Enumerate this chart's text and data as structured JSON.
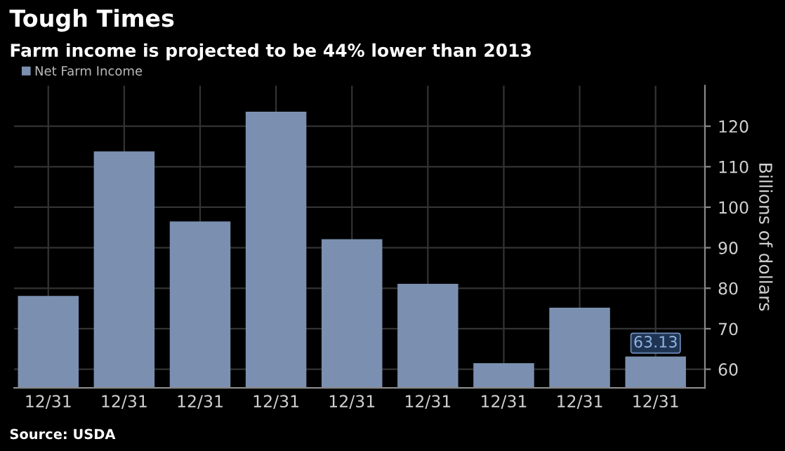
{
  "chart_data": {
    "type": "bar",
    "title": "Tough Times",
    "subtitle": "Farm income is projected to be 44% lower than 2013",
    "ylabel": "Billions of dollars",
    "categories": [
      "12/31",
      "12/31",
      "12/31",
      "12/31",
      "12/31",
      "12/31",
      "12/31",
      "12/31",
      "12/31"
    ],
    "series": [
      {
        "name": "Net Farm Income",
        "color": "#7b90b0",
        "values": [
          78.1,
          113.8,
          96.5,
          123.6,
          92.1,
          81.1,
          61.5,
          75.2,
          63.13
        ],
        "value_labels": [
          null,
          null,
          null,
          null,
          null,
          null,
          null,
          null,
          "63.13"
        ]
      }
    ],
    "ylim": [
      55.4,
      130
    ],
    "yticks": [
      60,
      70,
      80,
      90,
      100,
      110,
      120
    ],
    "grid": true,
    "legend": "top left",
    "annotations": [
      "Source: USDA"
    ]
  }
}
